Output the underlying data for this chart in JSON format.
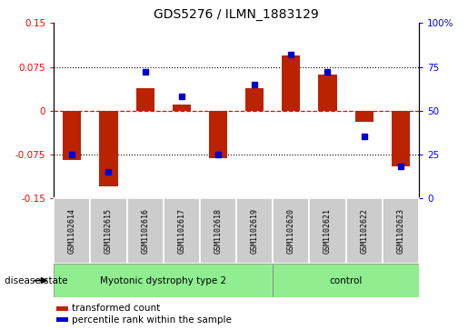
{
  "title": "GDS5276 / ILMN_1883129",
  "samples": [
    "GSM1102614",
    "GSM1102615",
    "GSM1102616",
    "GSM1102617",
    "GSM1102618",
    "GSM1102619",
    "GSM1102620",
    "GSM1102621",
    "GSM1102622",
    "GSM1102623"
  ],
  "red_values": [
    -0.085,
    -0.13,
    0.038,
    0.01,
    -0.082,
    0.038,
    0.095,
    0.062,
    -0.02,
    -0.095
  ],
  "blue_values_pct": [
    25,
    15,
    72,
    58,
    25,
    65,
    82,
    72,
    35,
    18
  ],
  "ylim_left": [
    -0.15,
    0.15
  ],
  "ylim_right": [
    0,
    100
  ],
  "yticks_left": [
    -0.15,
    -0.075,
    0,
    0.075,
    0.15
  ],
  "yticks_right": [
    0,
    25,
    50,
    75,
    100
  ],
  "ytick_labels_left": [
    "-0.15",
    "-0.075",
    "0",
    "0.075",
    "0.15"
  ],
  "ytick_labels_right": [
    "0",
    "25",
    "50",
    "75",
    "100%"
  ],
  "disease_groups": [
    {
      "label": "Myotonic dystrophy type 2",
      "start": 0,
      "end": 5
    },
    {
      "label": "control",
      "start": 6,
      "end": 9
    }
  ],
  "disease_state_label": "disease state",
  "legend_red": "transformed count",
  "legend_blue": "percentile rank within the sample",
  "bar_color": "#bb2200",
  "dot_color": "#0000cc",
  "group_color": "#90ee90",
  "sample_box_color": "#cccccc",
  "title_fontsize": 10,
  "tick_fontsize": 7.5,
  "bar_width": 0.5
}
